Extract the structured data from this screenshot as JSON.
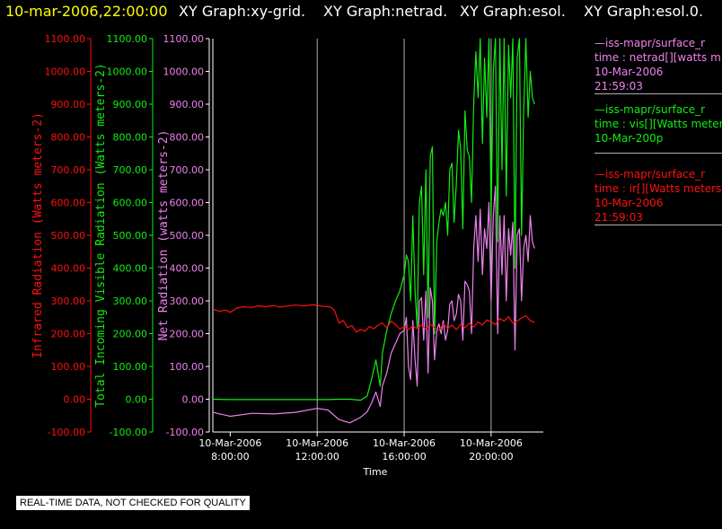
{
  "title_bar": {
    "timestamp": "10-mar-2006,22:00:00",
    "graphs": [
      "XY Graph:xy-grid.",
      "XY Graph:netrad.",
      "XY Graph:esol.",
      "XY Graph:esol.0."
    ]
  },
  "colors": {
    "timestamp": "#ffff00",
    "infrared": "#ff1010",
    "visible": "#11ee11",
    "net": "#ee82ee",
    "grid": "#b0b0b0",
    "axis": "#ffffff"
  },
  "notice": "REAL-TIME DATA, NOT CHECKED FOR QUALITY",
  "legend": [
    {
      "color": "#ee82ee",
      "lines": [
        "—iss-mapr/surface_r",
        "time : netrad[][watts m",
        "10-Mar-2006",
        "21:59:03"
      ]
    },
    {
      "color": "#11ee11",
      "lines": [
        "—iss-mapr/surface_r",
        "time : vis[][Watts meter",
        "10-Mar-200p"
      ]
    },
    {
      "color": "#ff1010",
      "lines": [
        "—iss-mapr/surface_r",
        "time : ir[][Watts meters",
        "10-Mar-2006",
        "21:59:03"
      ]
    }
  ],
  "chart_data": {
    "type": "line",
    "xlabel": "Time",
    "xlim": [
      7.2,
      22.4
    ],
    "x_ticks": [
      {
        "value": 8,
        "date": "10-Mar-2006",
        "time": "8:00:00"
      },
      {
        "value": 12,
        "date": "10-Mar-2006",
        "time": "12:00:00"
      },
      {
        "value": 16,
        "date": "10-Mar-2006",
        "time": "16:00:00"
      },
      {
        "value": 20,
        "date": "10-Mar-2006",
        "time": "20:00:00"
      }
    ],
    "grid_x": [
      12,
      16,
      20
    ],
    "ylim": [
      -100,
      1100
    ],
    "y_ticks": [
      "1100.00",
      "1000.00",
      "900.00",
      "800.00",
      "700.00",
      "600.00",
      "500.00",
      "400.00",
      "300.00",
      "200.00",
      "100.00",
      "0.00",
      "-100.00"
    ],
    "axes": [
      {
        "id": "ir",
        "label": "Infrared Radiation (Watts meters-2)"
      },
      {
        "id": "vis",
        "label": "Total Incoming Visible Radiation (Watts meters-2)"
      },
      {
        "id": "net",
        "label": "Net Radiation (watts meters-2)"
      }
    ],
    "series": [
      {
        "id": "ir",
        "x": [
          7.2,
          7.5,
          7.8,
          8.0,
          8.3,
          8.6,
          9.0,
          9.3,
          9.6,
          10.0,
          10.3,
          10.6,
          11.0,
          11.4,
          11.8,
          12.0,
          12.3,
          12.6,
          12.8,
          13.0,
          13.2,
          13.4,
          13.6,
          13.8,
          14.0,
          14.2,
          14.4,
          14.6,
          14.8,
          15.0,
          15.2,
          15.4,
          15.6,
          15.8,
          16.0,
          16.2,
          16.4,
          16.6,
          16.8,
          17.0,
          17.2,
          17.4,
          17.6,
          17.8,
          18.0,
          18.2,
          18.4,
          18.6,
          18.8,
          19.0,
          19.2,
          19.4,
          19.6,
          19.8,
          20.0,
          20.2,
          20.4,
          20.6,
          20.8,
          21.0,
          21.2,
          21.4,
          21.6,
          21.8,
          22.0
        ],
        "y": [
          275,
          268,
          272,
          265,
          278,
          282,
          280,
          285,
          282,
          286,
          281,
          284,
          287,
          285,
          288,
          286,
          283,
          282,
          270,
          232,
          240,
          218,
          225,
          205,
          213,
          208,
          222,
          215,
          226,
          233,
          218,
          238,
          228,
          214,
          222,
          212,
          224,
          216,
          226,
          214,
          228,
          218,
          210,
          230,
          216,
          226,
          212,
          228,
          218,
          232,
          220,
          236,
          226,
          242,
          236,
          228,
          246,
          238,
          252,
          232,
          238,
          248,
          255,
          240,
          234
        ]
      },
      {
        "id": "vis",
        "x": [
          7.2,
          8.0,
          9.0,
          10.0,
          11.0,
          12.0,
          12.5,
          13.0,
          13.5,
          14.0,
          14.3,
          14.5,
          14.7,
          14.9,
          15.0,
          15.2,
          15.4,
          15.6,
          15.8,
          16.0,
          16.1,
          16.2,
          16.3,
          16.4,
          16.5,
          16.6,
          16.7,
          16.8,
          16.9,
          17.0,
          17.1,
          17.2,
          17.3,
          17.4,
          17.5,
          17.6,
          17.7,
          17.8,
          17.9,
          18.0,
          18.1,
          18.2,
          18.3,
          18.4,
          18.5,
          18.6,
          18.7,
          18.8,
          18.9,
          19.0,
          19.1,
          19.2,
          19.3,
          19.4,
          19.5,
          19.6,
          19.7,
          19.8,
          19.9,
          20.0,
          20.1,
          20.2,
          20.3,
          20.4,
          20.5,
          20.6,
          20.7,
          20.8,
          20.9,
          21.0,
          21.1,
          21.2,
          21.3,
          21.4,
          21.5,
          21.6,
          21.7,
          21.8,
          21.9,
          22.0
        ],
        "y": [
          0,
          -1,
          -1,
          -1,
          -1,
          -1,
          -1,
          0,
          0,
          -3,
          10,
          60,
          120,
          40,
          140,
          210,
          260,
          300,
          330,
          380,
          440,
          420,
          300,
          560,
          330,
          220,
          600,
          650,
          380,
          700,
          250,
          740,
          770,
          200,
          480,
          540,
          580,
          560,
          600,
          500,
          700,
          720,
          540,
          660,
          820,
          760,
          520,
          880,
          760,
          740,
          600,
          900,
          1060,
          920,
          1100,
          780,
          1040,
          860,
          1100,
          560,
          1000,
          1100,
          480,
          1100,
          700,
          1100,
          620,
          1080,
          920,
          1100,
          400,
          1040,
          1100,
          500,
          880,
          1100,
          860,
          1000,
          920,
          900
        ]
      },
      {
        "id": "net",
        "x": [
          7.2,
          8.0,
          9.0,
          10.0,
          11.0,
          12.0,
          12.5,
          13.0,
          13.5,
          14.0,
          14.3,
          14.5,
          14.7,
          14.9,
          15.0,
          15.2,
          15.4,
          15.6,
          15.8,
          16.0,
          16.1,
          16.2,
          16.3,
          16.4,
          16.5,
          16.6,
          16.7,
          16.8,
          16.9,
          17.0,
          17.1,
          17.2,
          17.3,
          17.4,
          17.5,
          17.6,
          17.7,
          17.8,
          17.9,
          18.0,
          18.1,
          18.2,
          18.3,
          18.4,
          18.5,
          18.6,
          18.7,
          18.8,
          18.9,
          19.0,
          19.1,
          19.2,
          19.3,
          19.4,
          19.5,
          19.6,
          19.7,
          19.8,
          19.9,
          20.0,
          20.1,
          20.2,
          20.3,
          20.4,
          20.5,
          20.6,
          20.7,
          20.8,
          20.9,
          21.0,
          21.1,
          21.2,
          21.3,
          21.4,
          21.5,
          21.6,
          21.7,
          21.8,
          21.9,
          22.0
        ],
        "y": [
          -40,
          -52,
          -43,
          -45,
          -40,
          -28,
          -33,
          -62,
          -72,
          -55,
          -38,
          -12,
          22,
          -22,
          40,
          80,
          140,
          170,
          200,
          210,
          250,
          100,
          60,
          240,
          120,
          40,
          300,
          310,
          180,
          330,
          80,
          340,
          300,
          120,
          210,
          230,
          200,
          240,
          180,
          210,
          290,
          300,
          240,
          260,
          320,
          300,
          180,
          360,
          350,
          330,
          200,
          460,
          560,
          420,
          580,
          380,
          520,
          460,
          600,
          300,
          560,
          650,
          200,
          560,
          380,
          560,
          300,
          520,
          440,
          540,
          150,
          500,
          520,
          300,
          460,
          500,
          420,
          560,
          480,
          460
        ]
      }
    ]
  }
}
